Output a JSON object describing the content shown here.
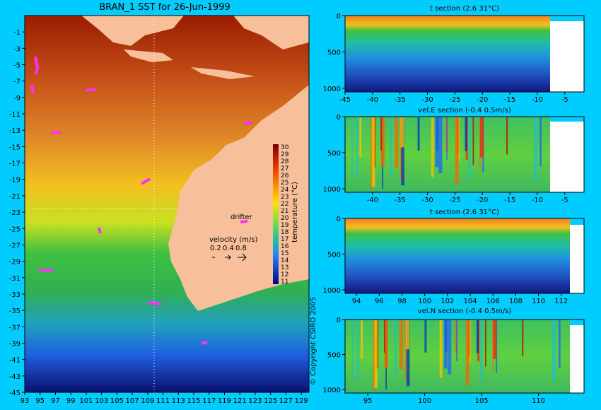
{
  "chart_data": [
    {
      "type": "heatmap",
      "title": "BRAN_1 SST for 26-Jun-1999",
      "x_ticks": [
        93,
        95,
        97,
        99,
        101,
        103,
        105,
        107,
        109,
        111,
        113,
        115,
        117,
        119,
        121,
        123,
        125,
        127,
        129
      ],
      "y_ticks": [
        -1,
        -3,
        -5,
        -7,
        -9,
        -11,
        -13,
        -15,
        -17,
        -19,
        -21,
        -23,
        -25,
        -27,
        -29,
        -31,
        -33,
        -35,
        -37,
        -39,
        -41,
        -43,
        -45
      ],
      "xlim": [
        93,
        130
      ],
      "ylim": [
        -45,
        1
      ],
      "section_lines": {
        "lon": 110,
        "lat": -23
      },
      "colorbar": {
        "label": "temperature (°C)",
        "ticks": [
          30,
          29,
          28,
          27,
          26,
          25,
          24,
          23,
          22,
          21,
          20,
          19,
          18,
          17,
          16,
          15,
          14,
          13,
          12,
          11
        ]
      },
      "drifter_label": "drifter",
      "velocity_legend": {
        "title": "velocity (m/s)",
        "scale": [
          "0.2",
          "0.4",
          "0.8"
        ]
      },
      "copyright": "© Copyright CSIRO 2005"
    },
    {
      "type": "heatmap",
      "title": "t section (2.6      31°C)",
      "x_ticks": [
        -45,
        -40,
        -35,
        -30,
        -25,
        -20,
        -15,
        -10,
        -5
      ],
      "xlim": [
        -45,
        -1.5
      ],
      "y_ticks": [
        0,
        500,
        1000
      ],
      "ylim": [
        1050,
        0
      ]
    },
    {
      "type": "heatmap",
      "title": "vel.E section (-0.4      0.5m/s)",
      "x_ticks": [
        -40,
        -35,
        -30,
        -25,
        -20,
        -15,
        -10,
        -5
      ],
      "xlim": [
        -45,
        -1.5
      ],
      "y_ticks": [
        0,
        500,
        1000
      ],
      "ylim": [
        1050,
        0
      ]
    },
    {
      "type": "heatmap",
      "title": "t section (2.6      31°C)",
      "x_ticks": [
        94,
        96,
        98,
        100,
        102,
        104,
        106,
        108,
        110,
        112
      ],
      "xlim": [
        93,
        114
      ],
      "y_ticks": [
        0,
        500,
        1000
      ],
      "ylim": [
        1050,
        0
      ]
    },
    {
      "type": "heatmap",
      "title": "vel.N section (-0.4      0.5m/s)",
      "x_ticks": [
        95,
        100,
        105,
        110
      ],
      "xlim": [
        93,
        114
      ],
      "y_ticks": [
        0,
        500,
        1000
      ],
      "ylim": [
        1050,
        0
      ]
    }
  ]
}
